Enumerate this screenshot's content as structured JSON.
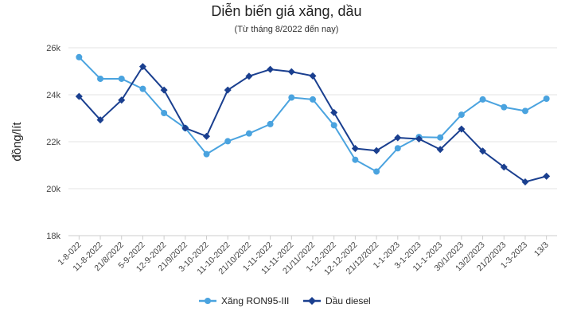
{
  "chart_data": {
    "type": "line",
    "title": "Diễn biến giá xăng, dầu",
    "subtitle": "(Từ tháng 8/2022 đến nay)",
    "ylabel": "đồng/lít",
    "xlabel": "",
    "ylim": [
      18000,
      26000
    ],
    "yticks": [
      {
        "value": 18000,
        "label": "18k"
      },
      {
        "value": 20000,
        "label": "20k"
      },
      {
        "value": 22000,
        "label": "22k"
      },
      {
        "value": 24000,
        "label": "24k"
      },
      {
        "value": 26000,
        "label": "26k"
      }
    ],
    "grid": true,
    "legend_position": "bottom",
    "categories": [
      "1-8-022",
      "11-8-2022",
      "21/8/2022",
      "5-9-2022",
      "12-9-2022",
      "21/9/2022",
      "3-10-2022",
      "11-10-2022",
      "21/10/2022",
      "1-11-2022",
      "11-11-2022",
      "21/11/2022",
      "1-12-2022",
      "12-12-2022",
      "21/12/2022",
      "1-1-2023",
      "3-1-2023",
      "11-1-2023",
      "30/1/2023",
      "13/2/2023",
      "21/2/2023",
      "1-3-2023",
      "13/3"
    ],
    "series": [
      {
        "name": "Xăng RON95-III",
        "color": "#4aa3df",
        "marker": "circle",
        "values": [
          25600,
          24680,
          24680,
          24250,
          23220,
          22580,
          21470,
          22020,
          22350,
          22750,
          23880,
          23800,
          22700,
          21230,
          20730,
          21720,
          22200,
          22180,
          23150,
          23800,
          23470,
          23310,
          23830
        ]
      },
      {
        "name": "Dầu diesel",
        "color": "#1a3f8f",
        "marker": "diamond",
        "values": [
          23930,
          22930,
          23770,
          25200,
          24200,
          22580,
          22230,
          24200,
          24790,
          25080,
          24980,
          24800,
          23240,
          21710,
          21620,
          22170,
          22120,
          21670,
          22540,
          21600,
          20920,
          20290,
          20530
        ]
      }
    ]
  }
}
